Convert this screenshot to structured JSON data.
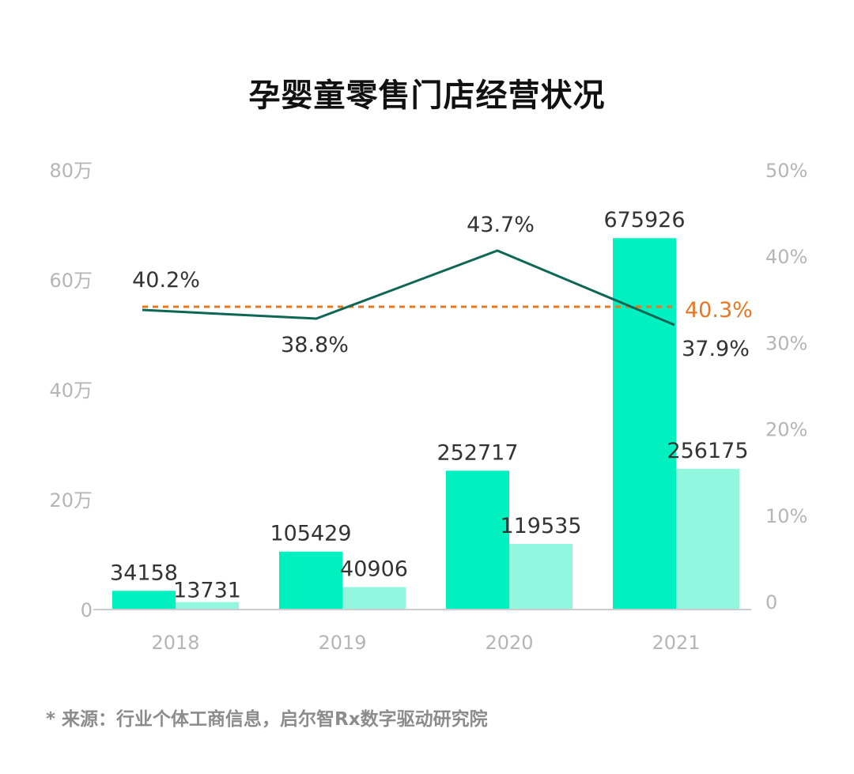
{
  "title": "孕婴童零售门店经营状况",
  "source": "* 来源：行业个体工商信息，启尔智Rx数字驱动研究院",
  "colors": {
    "bar_primary": "#00F0C0",
    "bar_secondary": "#93F7E0",
    "line": "#0E6655",
    "avg_line": "#E87722",
    "axis": "#CCCCCC",
    "tick_text": "#B5B5B5"
  },
  "chart_data": {
    "type": "bar+line",
    "title": "孕婴童零售门店经营状况",
    "categories": [
      "2018",
      "2019",
      "2020",
      "2021"
    ],
    "series": [
      {
        "name": "bar_series_1",
        "type": "bar",
        "axis": "left",
        "values": [
          34158,
          105429,
          252717,
          675926
        ]
      },
      {
        "name": "bar_series_2",
        "type": "bar",
        "axis": "left",
        "values": [
          13731,
          40906,
          119535,
          256175
        ]
      },
      {
        "name": "line_series",
        "type": "line",
        "axis": "right",
        "values": [
          40.2,
          38.8,
          43.7,
          37.9
        ],
        "labels": [
          "40.2%",
          "38.8%",
          "43.7%",
          "37.9%"
        ]
      },
      {
        "name": "average",
        "type": "reference_line",
        "value": 40.3,
        "label": "40.3%"
      }
    ],
    "left_axis": {
      "ticks": [
        "0",
        "20万",
        "40万",
        "60万",
        "80万"
      ],
      "range": [
        0,
        800000
      ]
    },
    "right_axis": {
      "ticks": [
        "0",
        "10%",
        "20%",
        "30%",
        "40%",
        "50%"
      ],
      "range": [
        0,
        50
      ]
    },
    "grid": false,
    "legend": null
  }
}
